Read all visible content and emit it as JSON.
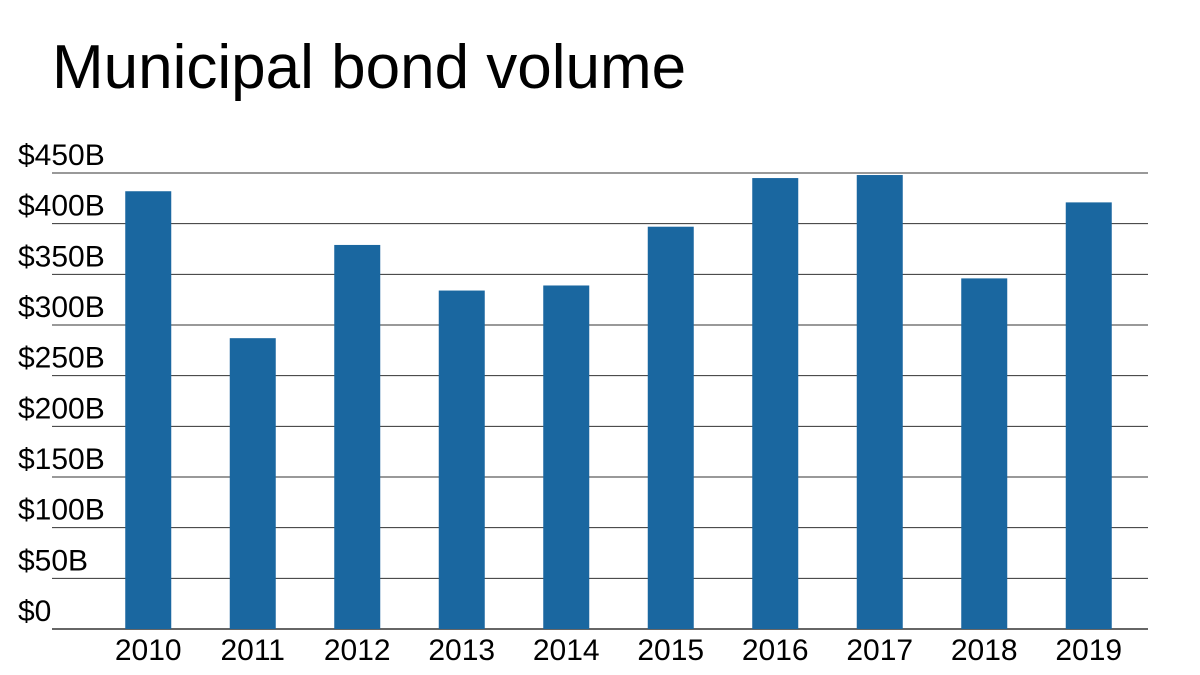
{
  "chart_data": {
    "type": "bar",
    "title": "Municipal bond volume",
    "xlabel": "",
    "ylabel": "",
    "categories": [
      "2010",
      "2011",
      "2012",
      "2013",
      "2014",
      "2015",
      "2016",
      "2017",
      "2018",
      "2019"
    ],
    "series": [
      {
        "values": [
          432,
          287,
          379,
          334,
          339,
          397,
          445,
          448,
          346,
          421
        ]
      }
    ],
    "ylim": [
      0,
      450
    ],
    "yticks": [
      0,
      50,
      100,
      150,
      200,
      250,
      300,
      350,
      400,
      450
    ],
    "ytick_labels": [
      "$0",
      "$50B",
      "$100B",
      "$150B",
      "$200B",
      "$250B",
      "$300B",
      "$350B",
      "$400B",
      "$450B"
    ],
    "grid": true,
    "legend": "none",
    "bar_color": "#1a67a0",
    "grid_color": "#333333"
  }
}
